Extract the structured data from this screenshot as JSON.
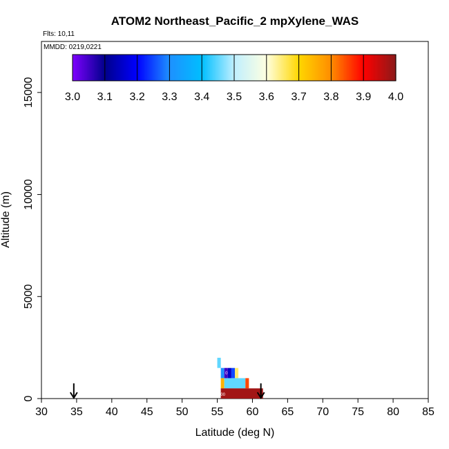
{
  "chart_data": {
    "type": "heatmap",
    "title": "ATOM2 Northeast_Pacific_2 mpXylene_WAS",
    "flights_note": "Flts: 10,11",
    "date_note": "MMDD: 0219,0221",
    "xlabel": "Latitude (deg N)",
    "ylabel": "Altitude (m)",
    "xlim": [
      30,
      85
    ],
    "ylim": [
      0,
      17500
    ],
    "xticks": [
      30,
      35,
      40,
      45,
      50,
      55,
      60,
      65,
      70,
      75,
      80,
      85
    ],
    "yticks": [
      0,
      5000,
      10000,
      15000
    ],
    "colorbar": {
      "min": 3.0,
      "max": 4.0,
      "ticks": [
        "3.0",
        "3.1",
        "3.2",
        "3.3",
        "3.4",
        "3.5",
        "3.6",
        "3.7",
        "3.8",
        "3.9",
        "4.0"
      ],
      "colors": [
        "#7f00ff",
        "#00008b",
        "#0000ff",
        "#1e90ff",
        "#00bfff",
        "#bfefff",
        "#ffffe0",
        "#ffd700",
        "#ff8c00",
        "#ff0000",
        "#8b1a1a"
      ]
    },
    "cells": [
      {
        "lat0": 55.0,
        "lat1": 55.5,
        "alt0": 1500,
        "alt1": 2000,
        "value": 3.45
      },
      {
        "lat0": 55.5,
        "lat1": 56.0,
        "alt0": 1000,
        "alt1": 1500,
        "value": 3.3
      },
      {
        "lat0": 56.0,
        "lat1": 56.5,
        "alt0": 1000,
        "alt1": 1500,
        "value": 3.05
      },
      {
        "lat0": 56.5,
        "lat1": 57.0,
        "alt0": 1000,
        "alt1": 1500,
        "value": 3.15
      },
      {
        "lat0": 57.0,
        "lat1": 57.5,
        "alt0": 1000,
        "alt1": 1500,
        "value": 3.25
      },
      {
        "lat0": 57.5,
        "lat1": 58.0,
        "alt0": 1000,
        "alt1": 1500,
        "value": 3.65
      },
      {
        "lat0": 55.5,
        "lat1": 56.0,
        "alt0": 500,
        "alt1": 1000,
        "value": 3.75
      },
      {
        "lat0": 56.0,
        "lat1": 59.0,
        "alt0": 500,
        "alt1": 1000,
        "value": 3.45
      },
      {
        "lat0": 59.0,
        "lat1": 59.5,
        "alt0": 500,
        "alt1": 1000,
        "value": 3.85
      },
      {
        "lat0": 55.5,
        "lat1": 61.5,
        "alt0": 0,
        "alt1": 500,
        "value": 3.98
      }
    ],
    "cell_labels": [
      {
        "lat": 56.3,
        "alt": 1250,
        "text": "0"
      },
      {
        "lat": 55.8,
        "alt": 200,
        "text": "00"
      }
    ],
    "arrows_lat": [
      34.6,
      61.2
    ]
  }
}
